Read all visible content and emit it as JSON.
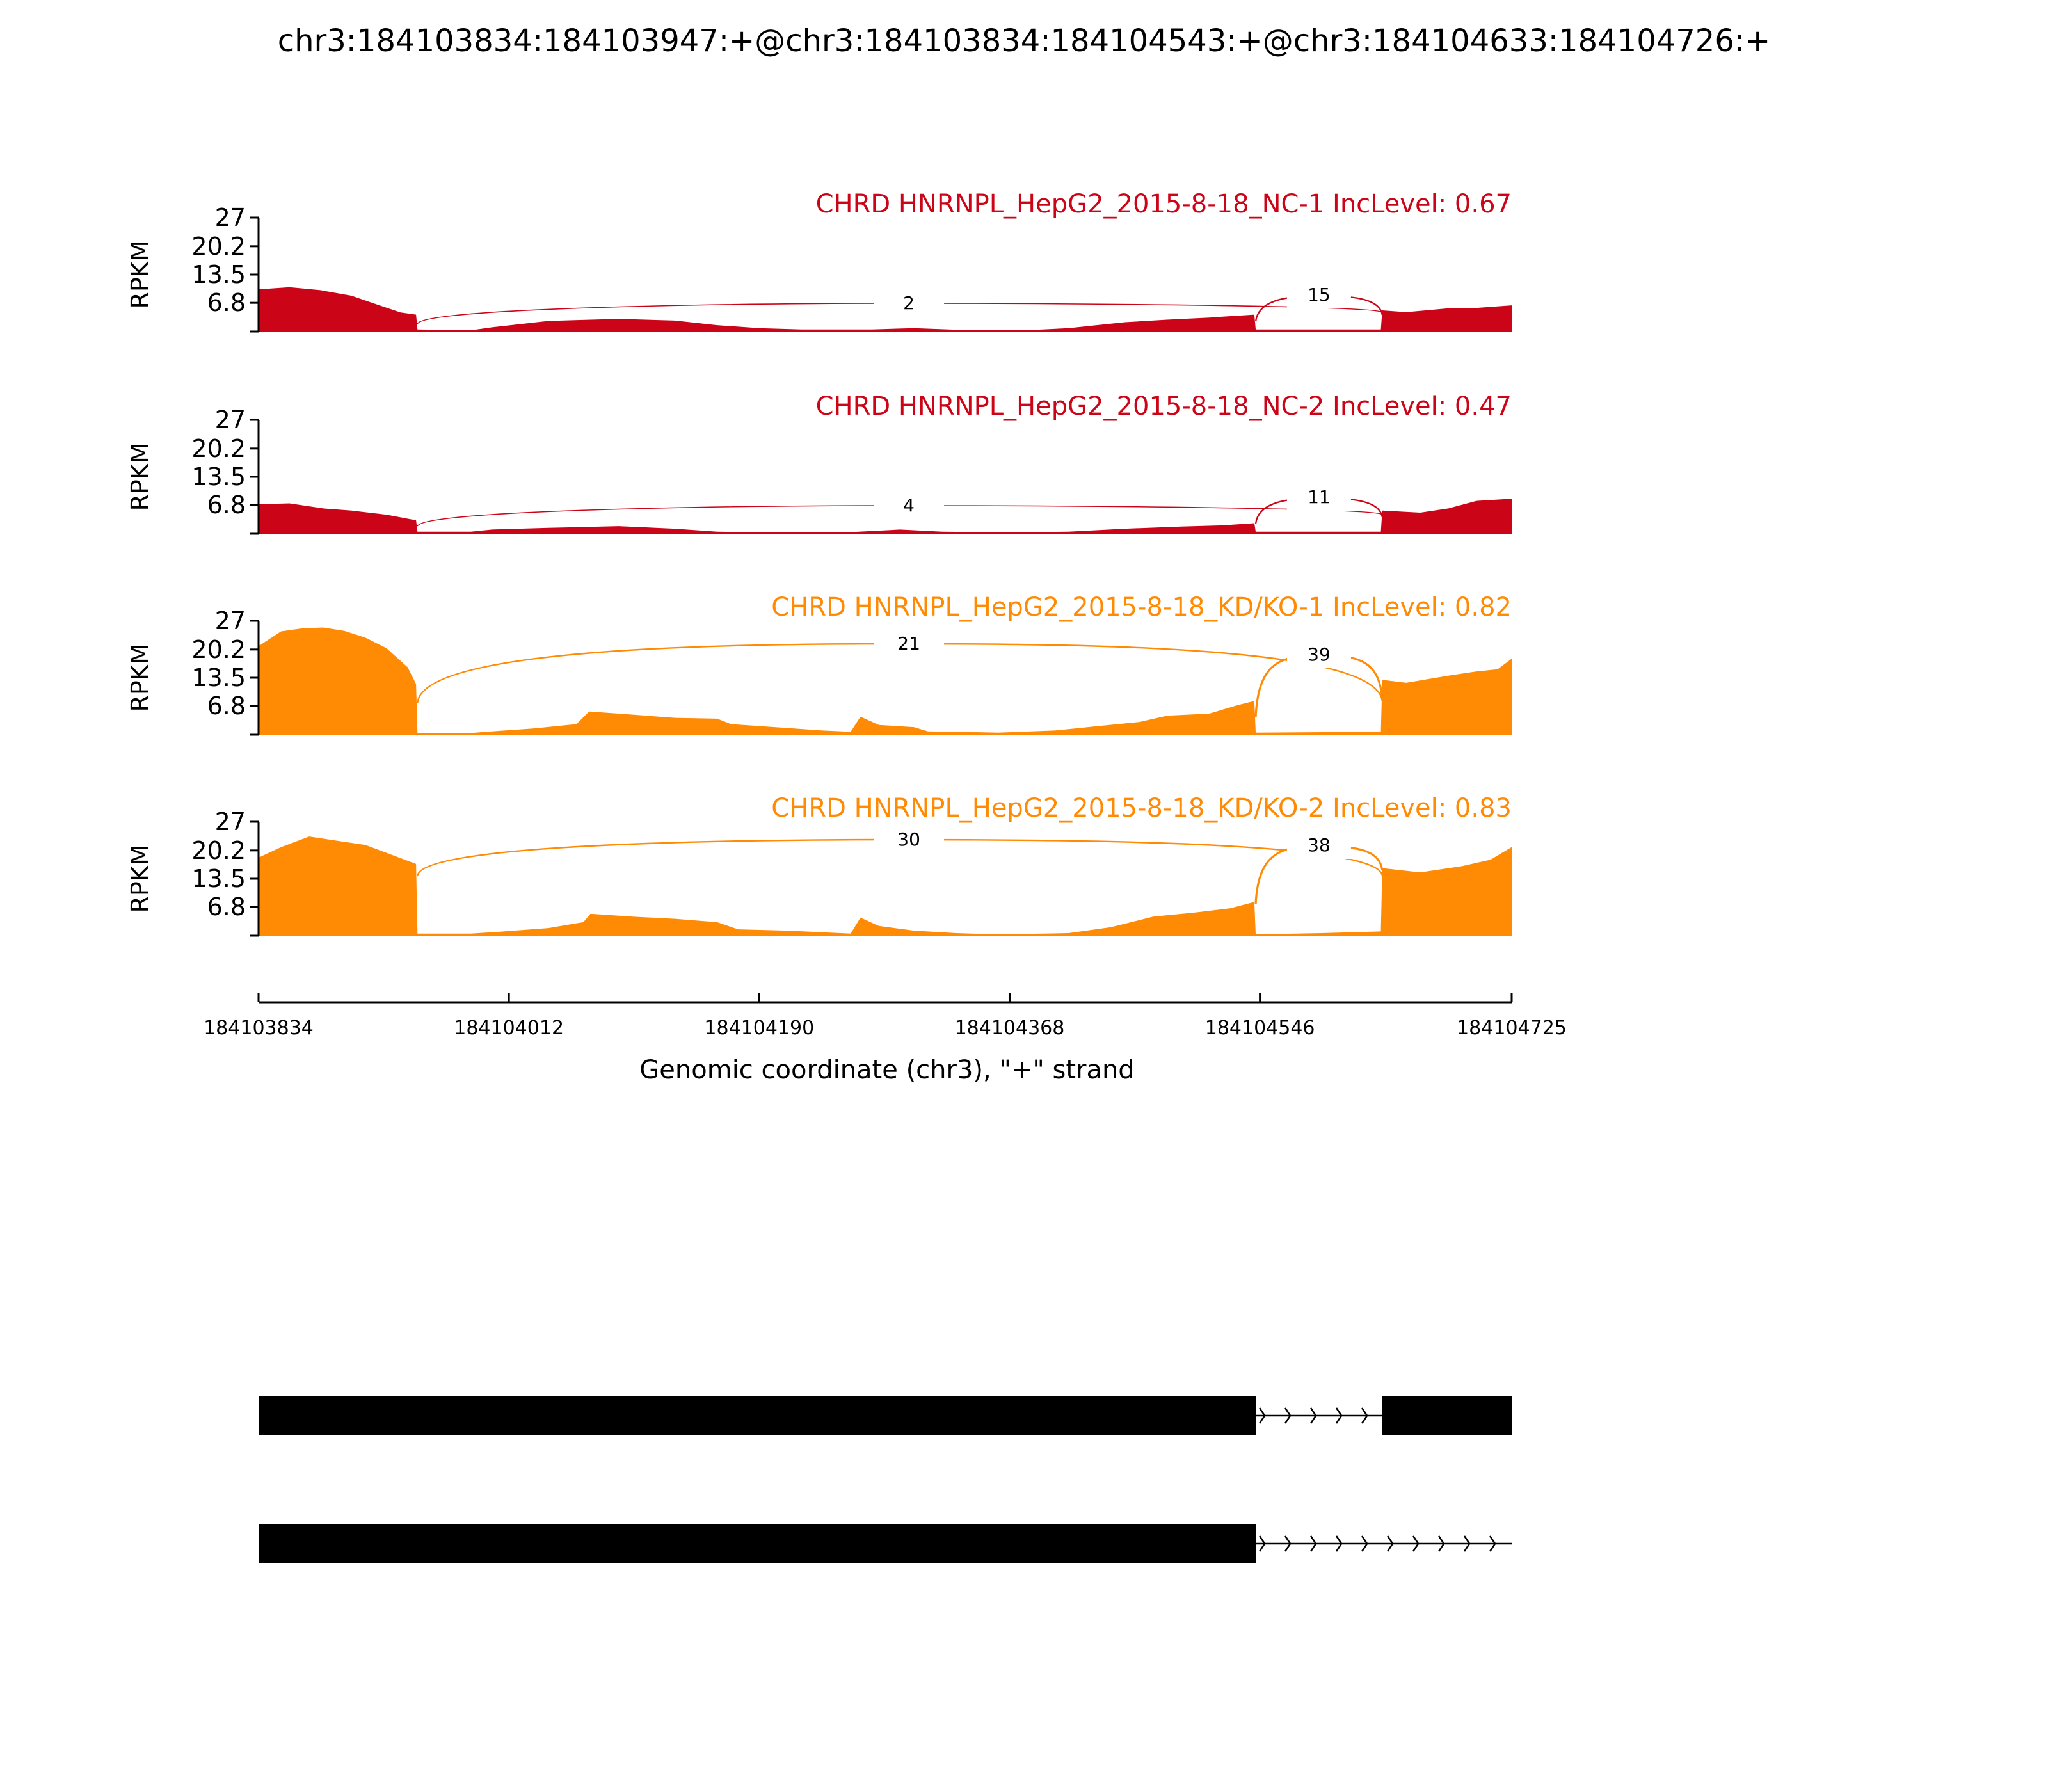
{
  "title": "chr3:184103834:184103947:+@chr3:184103834:184104543:+@chr3:184104633:184104726:+",
  "colors": {
    "nc": "#cc0417",
    "kd": "#ff8a04",
    "axis": "#000000",
    "gene": "#000000"
  },
  "chart_data": {
    "type": "area",
    "subtype": "sashimi",
    "chromosome": "chr3",
    "strand": "+",
    "xlabel": "Genomic coordinate (chr3), \"+\" strand",
    "ylabel": "RPKM",
    "xlim": [
      184103834,
      184104725
    ],
    "ylim": [
      0,
      27
    ],
    "xticks": [
      184103834,
      184104012,
      184104190,
      184104368,
      184104546,
      184104725
    ],
    "yticks": [
      6.8,
      13.5,
      20.2,
      27
    ],
    "yticks_labels": [
      "6.8",
      "13.5",
      "20.2",
      "27"
    ],
    "panels": [
      {
        "label": "CHRD HNRNPL_HepG2_2015-8-18_NC-1 IncLevel: 0.67",
        "group": "nc",
        "coverage": [
          [
            184103834,
            10
          ],
          [
            184103856,
            10.5
          ],
          [
            184103878,
            9.8
          ],
          [
            184103900,
            8.5
          ],
          [
            184103920,
            6.2
          ],
          [
            184103935,
            4.5
          ],
          [
            184103946,
            4
          ],
          [
            184103947,
            0.5
          ],
          [
            184103985,
            0.3
          ],
          [
            184104000,
            1
          ],
          [
            184104040,
            2.5
          ],
          [
            184104090,
            3
          ],
          [
            184104130,
            2.6
          ],
          [
            184104160,
            1.5
          ],
          [
            184104190,
            0.8
          ],
          [
            184104220,
            0.5
          ],
          [
            184104270,
            0.5
          ],
          [
            184104300,
            0.8
          ],
          [
            184104340,
            0.3
          ],
          [
            184104380,
            0.3
          ],
          [
            184104410,
            0.8
          ],
          [
            184104450,
            2.2
          ],
          [
            184104480,
            2.8
          ],
          [
            184104510,
            3.3
          ],
          [
            184104542,
            4
          ],
          [
            184104543,
            0.5
          ],
          [
            184104632,
            0.5
          ],
          [
            184104633,
            5
          ],
          [
            184104650,
            4.6
          ],
          [
            184104680,
            5.5
          ],
          [
            184104700,
            5.6
          ],
          [
            184104725,
            6.2
          ]
        ],
        "junctions": [
          {
            "start": 184103947,
            "end": 184104633,
            "count": 2
          },
          {
            "start": 184104543,
            "end": 184104633,
            "count": 15
          }
        ]
      },
      {
        "label": "CHRD HNRNPL_HepG2_2015-8-18_NC-2 IncLevel: 0.47",
        "group": "nc",
        "coverage": [
          [
            184103834,
            7
          ],
          [
            184103856,
            7.2
          ],
          [
            184103880,
            6
          ],
          [
            184103900,
            5.5
          ],
          [
            184103925,
            4.5
          ],
          [
            184103946,
            3.2
          ],
          [
            184103947,
            0.5
          ],
          [
            184103985,
            0.5
          ],
          [
            184104000,
            1
          ],
          [
            184104040,
            1.4
          ],
          [
            184104090,
            1.8
          ],
          [
            184104130,
            1.2
          ],
          [
            184104160,
            0.5
          ],
          [
            184104190,
            0.3
          ],
          [
            184104250,
            0.3
          ],
          [
            184104290,
            1
          ],
          [
            184104320,
            0.5
          ],
          [
            184104370,
            0.3
          ],
          [
            184104410,
            0.5
          ],
          [
            184104450,
            1.2
          ],
          [
            184104490,
            1.7
          ],
          [
            184104520,
            2
          ],
          [
            184104542,
            2.5
          ],
          [
            184104543,
            0.5
          ],
          [
            184104632,
            0.5
          ],
          [
            184104633,
            5.5
          ],
          [
            184104660,
            5
          ],
          [
            184104680,
            6
          ],
          [
            184104700,
            7.8
          ],
          [
            184104725,
            8.3
          ]
        ],
        "junctions": [
          {
            "start": 184103947,
            "end": 184104633,
            "count": 4
          },
          {
            "start": 184104543,
            "end": 184104633,
            "count": 11
          }
        ]
      },
      {
        "label": "CHRD HNRNPL_HepG2_2015-8-18_KD/KO-1 IncLevel: 0.82",
        "group": "kd",
        "coverage": [
          [
            184103834,
            21
          ],
          [
            184103850,
            24.5
          ],
          [
            184103865,
            25.2
          ],
          [
            184103880,
            25.4
          ],
          [
            184103895,
            24.6
          ],
          [
            184103910,
            23
          ],
          [
            184103925,
            20.5
          ],
          [
            184103940,
            16
          ],
          [
            184103946,
            12
          ],
          [
            184103947,
            0.3
          ],
          [
            184103985,
            0.4
          ],
          [
            184104000,
            0.8
          ],
          [
            184104030,
            1.5
          ],
          [
            184104060,
            2.5
          ],
          [
            184104069,
            5.5
          ],
          [
            184104090,
            5
          ],
          [
            184104130,
            4
          ],
          [
            184104160,
            3.8
          ],
          [
            184104170,
            2.5
          ],
          [
            184104210,
            1.6
          ],
          [
            184104235,
            1
          ],
          [
            184104255,
            0.7
          ],
          [
            184104262,
            4.3
          ],
          [
            184104275,
            2.3
          ],
          [
            184104300,
            1.8
          ],
          [
            184104310,
            0.8
          ],
          [
            184104360,
            0.5
          ],
          [
            184104400,
            1
          ],
          [
            184104430,
            2
          ],
          [
            184104460,
            3
          ],
          [
            184104480,
            4.5
          ],
          [
            184104510,
            5
          ],
          [
            184104530,
            7
          ],
          [
            184104542,
            8
          ],
          [
            184104543,
            0.5
          ],
          [
            184104632,
            0.7
          ],
          [
            184104633,
            13
          ],
          [
            184104650,
            12.3
          ],
          [
            184104680,
            14
          ],
          [
            184104700,
            15
          ],
          [
            184104715,
            15.5
          ],
          [
            184104725,
            18
          ]
        ],
        "junctions": [
          {
            "start": 184103947,
            "end": 184104633,
            "count": 21
          },
          {
            "start": 184104543,
            "end": 184104633,
            "count": 39
          }
        ]
      },
      {
        "label": "CHRD HNRNPL_HepG2_2015-8-18_KD/KO-2 IncLevel: 0.83",
        "group": "kd",
        "coverage": [
          [
            184103834,
            18.5
          ],
          [
            184103850,
            21
          ],
          [
            184103870,
            23.5
          ],
          [
            184103890,
            22.5
          ],
          [
            184103910,
            21.5
          ],
          [
            184103930,
            19
          ],
          [
            184103946,
            17
          ],
          [
            184103947,
            0.5
          ],
          [
            184103985,
            0.5
          ],
          [
            184104000,
            0.8
          ],
          [
            184104040,
            1.8
          ],
          [
            184104065,
            3.2
          ],
          [
            184104070,
            5.2
          ],
          [
            184104100,
            4.5
          ],
          [
            184104130,
            4
          ],
          [
            184104160,
            3.2
          ],
          [
            184104175,
            1.5
          ],
          [
            184104210,
            1.2
          ],
          [
            184104255,
            0.5
          ],
          [
            184104262,
            4.3
          ],
          [
            184104275,
            2.3
          ],
          [
            184104300,
            1.2
          ],
          [
            184104330,
            0.6
          ],
          [
            184104360,
            0.3
          ],
          [
            184104410,
            0.6
          ],
          [
            184104440,
            2
          ],
          [
            184104470,
            4.5
          ],
          [
            184104500,
            5.5
          ],
          [
            184104525,
            6.5
          ],
          [
            184104542,
            8
          ],
          [
            184104543,
            0.3
          ],
          [
            184104590,
            0.6
          ],
          [
            184104632,
            1
          ],
          [
            184104633,
            16
          ],
          [
            184104660,
            15
          ],
          [
            184104690,
            16.5
          ],
          [
            184104710,
            18
          ],
          [
            184104725,
            21
          ]
        ],
        "junctions": [
          {
            "start": 184103947,
            "end": 184104633,
            "count": 30
          },
          {
            "start": 184104543,
            "end": 184104633,
            "count": 38
          }
        ]
      }
    ],
    "gene_models": [
      {
        "exons": [
          [
            184103834,
            184104543
          ],
          [
            184104633,
            184104725
          ]
        ]
      },
      {
        "exons": [
          [
            184103834,
            184104543
          ]
        ],
        "line_end": 184104725
      }
    ]
  }
}
